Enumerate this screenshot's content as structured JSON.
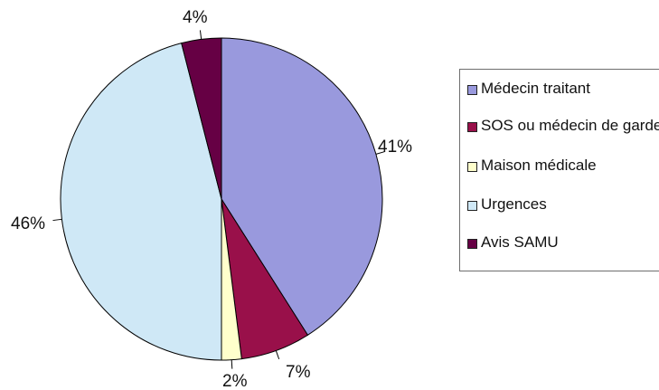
{
  "chart_data": {
    "type": "pie",
    "title": "",
    "slices": [
      {
        "label": "Médecin traitant",
        "value": 41,
        "value_label": "41%",
        "color": "#9999dd"
      },
      {
        "label": "SOS ou médecin de garde",
        "value": 7,
        "value_label": "7%",
        "color": "#99104a"
      },
      {
        "label": "Maison médicale",
        "value": 2,
        "value_label": "2%",
        "color": "#ffffcc"
      },
      {
        "label": "Urgences",
        "value": 46,
        "value_label": "46%",
        "color": "#cfe8f6"
      },
      {
        "label": "Avis SAMU",
        "value": 4,
        "value_label": "4%",
        "color": "#660044"
      }
    ],
    "start_angle": "12 o'clock",
    "direction": "clockwise",
    "legend_position": "right"
  }
}
